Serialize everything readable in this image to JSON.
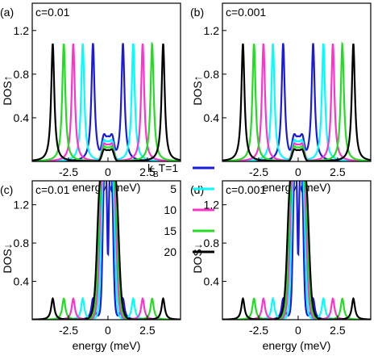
{
  "chart_data": [
    {
      "type": "line",
      "panel_label": "(a)",
      "annotation": "c=0.01",
      "xlabel": "energy (meV)",
      "ylabel": "DOS↑",
      "xlim": [
        -4.8,
        4.6
      ],
      "ylim": [
        0,
        1.45
      ],
      "x_ticks": [
        "-2.5",
        "0",
        "2.5"
      ],
      "y_ticks": [
        "0.4",
        "0.8",
        "1.2"
      ],
      "spin": "up",
      "central_height": 0.2,
      "series": [
        {
          "legend": "k_BT=1",
          "color": "#1a1adc",
          "peaks_x": [
            -0.95,
            0.95
          ],
          "peaks_y": [
            1.08,
            1.08
          ]
        },
        {
          "legend": "5",
          "color": "#00ffff",
          "peaks_x": [
            -1.6,
            1.6
          ],
          "peaks_y": [
            1.08,
            1.08
          ]
        },
        {
          "legend": "10",
          "color": "#ff33cc",
          "peaks_x": [
            -2.2,
            2.2
          ],
          "peaks_y": [
            1.08,
            1.08
          ]
        },
        {
          "legend": "15",
          "color": "#22dd22",
          "peaks_x": [
            -2.8,
            2.8
          ],
          "peaks_y": [
            1.08,
            1.08
          ]
        },
        {
          "legend": "20",
          "color": "#000000",
          "peaks_x": [
            -3.5,
            3.5
          ],
          "peaks_y": [
            1.08,
            1.08
          ]
        }
      ]
    },
    {
      "type": "line",
      "panel_label": "(b)",
      "annotation": "c=0.001",
      "xlabel": "energy (meV)",
      "ylabel": "DOS↑",
      "xlim": [
        -4.8,
        4.6
      ],
      "ylim": [
        0,
        1.45
      ],
      "x_ticks": [
        "-2.5",
        "0",
        "2.5"
      ],
      "y_ticks": [
        "0.4",
        "0.8",
        "1.2"
      ],
      "spin": "up",
      "central_height": 0.2,
      "series": [
        {
          "legend": "k_BT=1",
          "color": "#1a1adc",
          "peaks_x": [
            -0.95,
            0.95
          ],
          "peaks_y": [
            1.08,
            1.08
          ]
        },
        {
          "legend": "5",
          "color": "#00ffff",
          "peaks_x": [
            -1.6,
            1.6
          ],
          "peaks_y": [
            1.08,
            1.08
          ]
        },
        {
          "legend": "10",
          "color": "#ff33cc",
          "peaks_x": [
            -2.2,
            2.2
          ],
          "peaks_y": [
            1.08,
            1.08
          ]
        },
        {
          "legend": "15",
          "color": "#22dd22",
          "peaks_x": [
            -2.8,
            2.8
          ],
          "peaks_y": [
            1.08,
            1.08
          ]
        },
        {
          "legend": "20",
          "color": "#000000",
          "peaks_x": [
            -3.5,
            3.5
          ],
          "peaks_y": [
            1.08,
            1.08
          ]
        }
      ]
    },
    {
      "type": "line",
      "panel_label": "(c)",
      "annotation": "c=0.01",
      "xlabel": "energy (meV)",
      "ylabel": "DOS↓",
      "xlim": [
        -4.8,
        4.6
      ],
      "ylim": [
        0,
        1.45
      ],
      "x_ticks": [
        "-2.5",
        "0",
        "2.5"
      ],
      "y_ticks": [
        "0.4",
        "0.8",
        "1.2"
      ],
      "spin": "down",
      "central_height": 1.45,
      "series": [
        {
          "legend": "k_BT=1",
          "color": "#1a1adc",
          "peaks_x": [
            -0.95,
            0.95
          ],
          "peaks_y": [
            0.22,
            0.22
          ]
        },
        {
          "legend": "5",
          "color": "#00ffff",
          "peaks_x": [
            -1.6,
            1.6
          ],
          "peaks_y": [
            0.22,
            0.22
          ]
        },
        {
          "legend": "10",
          "color": "#ff33cc",
          "peaks_x": [
            -2.2,
            2.2
          ],
          "peaks_y": [
            0.22,
            0.22
          ]
        },
        {
          "legend": "15",
          "color": "#22dd22",
          "peaks_x": [
            -2.8,
            2.8
          ],
          "peaks_y": [
            0.22,
            0.22
          ]
        },
        {
          "legend": "20",
          "color": "#000000",
          "peaks_x": [
            -3.5,
            3.5
          ],
          "peaks_y": [
            0.22,
            0.22
          ]
        }
      ]
    },
    {
      "type": "line",
      "panel_label": "(d)",
      "annotation": "c=0.001",
      "xlabel": "energy (meV)",
      "ylabel": "DOS↓",
      "xlim": [
        -4.8,
        4.6
      ],
      "ylim": [
        0,
        1.45
      ],
      "x_ticks": [
        "-2.5",
        "0",
        "2.5"
      ],
      "y_ticks": [
        "0.4",
        "0.8",
        "1.2"
      ],
      "spin": "down",
      "central_height": 1.45,
      "series": [
        {
          "legend": "k_BT=1",
          "color": "#1a1adc",
          "peaks_x": [
            -0.95,
            0.95
          ],
          "peaks_y": [
            0.22,
            0.22
          ]
        },
        {
          "legend": "5",
          "color": "#00ffff",
          "peaks_x": [
            -1.6,
            1.6
          ],
          "peaks_y": [
            0.22,
            0.22
          ]
        },
        {
          "legend": "10",
          "color": "#ff33cc",
          "peaks_x": [
            -2.2,
            2.2
          ],
          "peaks_y": [
            0.22,
            0.22
          ]
        },
        {
          "legend": "15",
          "color": "#22dd22",
          "peaks_x": [
            -2.8,
            2.8
          ],
          "peaks_y": [
            0.22,
            0.22
          ]
        },
        {
          "legend": "20",
          "color": "#000000",
          "peaks_x": [
            -3.5,
            3.5
          ],
          "peaks_y": [
            0.22,
            0.22
          ]
        }
      ]
    }
  ],
  "legend": {
    "title_k": "k",
    "title_sub": "B",
    "title_rest": "T=1",
    "entries": [
      {
        "label": "5",
        "color": "#00ffff"
      },
      {
        "label": "10",
        "color": "#ff33cc"
      },
      {
        "label": "15",
        "color": "#22dd22"
      },
      {
        "label": "20",
        "color": "#000000"
      }
    ],
    "first_color": "#1a1adc"
  }
}
